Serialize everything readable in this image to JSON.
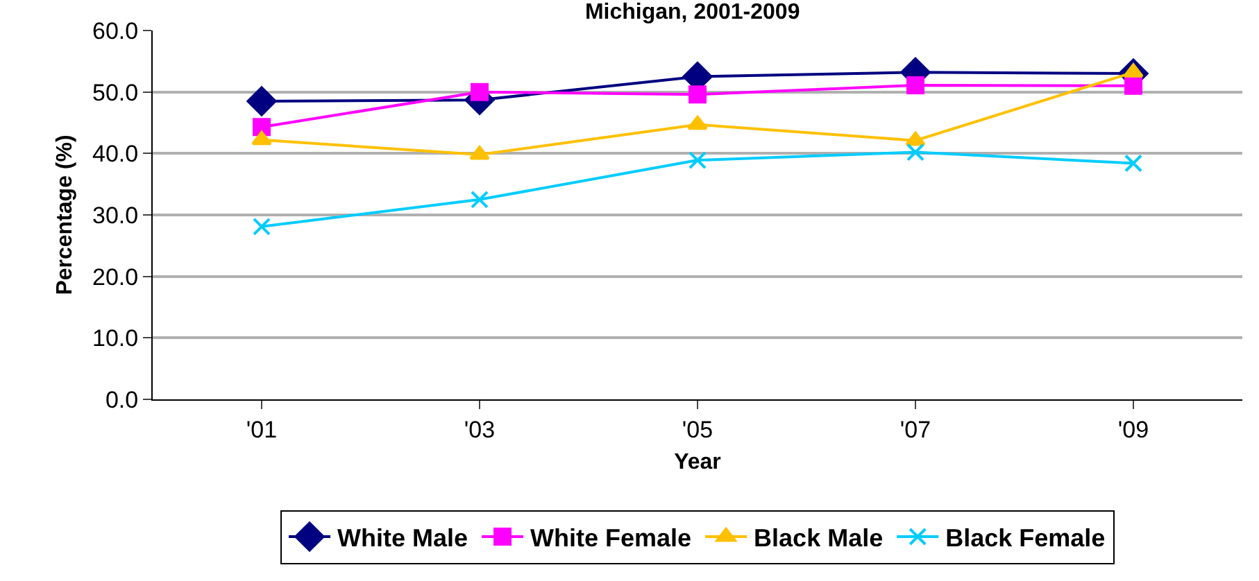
{
  "chart_data": {
    "type": "line",
    "title": "Michigan, 2001-2009",
    "xlabel": "Year",
    "ylabel": "Percentage (%)",
    "categories": [
      "'01",
      "'03",
      "'05",
      "'07",
      "'09"
    ],
    "series": [
      {
        "name": "White Male",
        "color": "#000080",
        "marker": "diamond",
        "values": [
          48.5,
          48.7,
          52.5,
          53.2,
          53.0
        ]
      },
      {
        "name": "White Female",
        "color": "#ff00ff",
        "marker": "square",
        "values": [
          44.3,
          50.0,
          49.6,
          51.1,
          51.0
        ]
      },
      {
        "name": "Black Male",
        "color": "#ffc000",
        "marker": "triangle",
        "values": [
          42.2,
          39.8,
          44.7,
          42.1,
          53.2
        ]
      },
      {
        "name": "Black Female",
        "color": "#00ccff",
        "marker": "cross",
        "values": [
          28.1,
          32.5,
          38.9,
          40.2,
          38.4
        ]
      }
    ],
    "ylim": [
      0,
      60
    ],
    "yticks": [
      {
        "value": 0,
        "label": "0.0"
      },
      {
        "value": 10,
        "label": "10.0"
      },
      {
        "value": 20,
        "label": "20.0"
      },
      {
        "value": 30,
        "label": "30.0"
      },
      {
        "value": 40,
        "label": "40.0"
      },
      {
        "value": 50,
        "label": "50.0"
      },
      {
        "value": 60,
        "label": "60.0"
      }
    ],
    "grid": "y",
    "legend": "bottom"
  }
}
